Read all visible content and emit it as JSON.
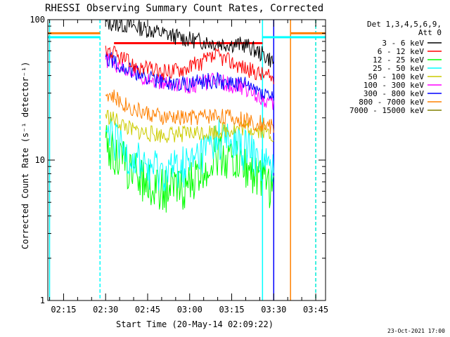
{
  "chart_data": {
    "type": "line",
    "title": "RHESSI Observing Summary Count Rates, Corrected",
    "xlabel": "Start Time (20-May-14 02:09:22)",
    "ylabel": "Corrected Count Rate (s⁻¹ detector⁻¹)",
    "y_scale": "log",
    "ylim": [
      1,
      100
    ],
    "xlim": [
      "02:09:22",
      "03:48:30"
    ],
    "x_ticks": [
      "02:15",
      "02:30",
      "02:45",
      "03:00",
      "03:15",
      "03:30",
      "03:45"
    ],
    "y_ticks": [
      "1",
      "10",
      "100"
    ],
    "legend_header": [
      "Det 1,3,4,5,6,9,",
      "Att 0"
    ],
    "legend_position": "right",
    "grid": false,
    "series": [
      {
        "name": "3 - 6 keV",
        "color": "#000000",
        "x": [
          "02:30",
          "02:40",
          "02:50",
          "03:00",
          "03:10",
          "03:20",
          "03:27",
          "03:30"
        ],
        "values": [
          95,
          90,
          80,
          72,
          68,
          66,
          55,
          50
        ]
      },
      {
        "name": "6 - 12 keV",
        "color": "#ff0000",
        "x": [
          "02:30",
          "02:40",
          "02:50",
          "03:00",
          "03:10",
          "03:20",
          "03:27",
          "03:30"
        ],
        "values": [
          62,
          47,
          42,
          46,
          55,
          45,
          40,
          38
        ]
      },
      {
        "name": "12 - 25 keV",
        "color": "#00ff00",
        "x": [
          "02:30",
          "02:40",
          "02:50",
          "03:00",
          "03:10",
          "03:20",
          "03:27",
          "03:30"
        ],
        "values": [
          13,
          8,
          6,
          6.5,
          11,
          9,
          7,
          6
        ]
      },
      {
        "name": "25 - 50 keV",
        "color": "#00ffff",
        "x": [
          "02:30",
          "02:40",
          "02:50",
          "03:00",
          "03:10",
          "03:20",
          "03:27",
          "03:30"
        ],
        "values": [
          15,
          10,
          8,
          9,
          14,
          12,
          9,
          8
        ]
      },
      {
        "name": "50 - 100 keV",
        "color": "#cccc00",
        "x": [
          "02:30",
          "02:40",
          "02:50",
          "03:00",
          "03:10",
          "03:20",
          "03:27",
          "03:30"
        ],
        "values": [
          21,
          16,
          15,
          15.5,
          16,
          17,
          16,
          15
        ]
      },
      {
        "name": "100 - 300 keV",
        "color": "#ff00ff",
        "x": [
          "02:30",
          "02:40",
          "02:50",
          "03:00",
          "03:10",
          "03:20",
          "03:27",
          "03:30"
        ],
        "values": [
          52,
          42,
          35,
          34,
          37,
          32,
          27,
          24
        ]
      },
      {
        "name": "300 - 800 keV",
        "color": "#0000ff",
        "x": [
          "02:30",
          "02:40",
          "02:50",
          "03:00",
          "03:10",
          "03:20",
          "03:27",
          "03:30"
        ],
        "values": [
          55,
          42,
          36,
          35,
          37,
          34,
          30,
          28
        ]
      },
      {
        "name": "800 - 7000 keV",
        "color": "#ff8000",
        "x": [
          "02:30",
          "02:40",
          "02:50",
          "03:00",
          "03:10",
          "03:20",
          "03:27",
          "03:30"
        ],
        "values": [
          30,
          23,
          20,
          20,
          21,
          19,
          18,
          17
        ]
      },
      {
        "name": "7000 - 15000 keV",
        "color": "#808000",
        "x": [],
        "values": []
      }
    ],
    "overlays": [
      {
        "color": "#00ffff",
        "x": [
          "02:09:22",
          "02:28"
        ],
        "values": [
          75,
          75
        ]
      },
      {
        "color": "#ff8000",
        "x": [
          "02:09:22",
          "02:28"
        ],
        "values": [
          80,
          80
        ]
      },
      {
        "color": "#ff0000",
        "x": [
          "02:33",
          "03:26"
        ],
        "values": [
          68,
          68
        ]
      },
      {
        "color": "#00ffff",
        "x": [
          "03:26",
          "03:48:30"
        ],
        "values": [
          75,
          75
        ]
      },
      {
        "color": "#ff8000",
        "x": [
          "03:36",
          "03:48:30"
        ],
        "values": [
          80,
          80
        ]
      }
    ],
    "vertical_markers": [
      {
        "color": "#00ffff",
        "x": "02:10",
        "style": "solid"
      },
      {
        "color": "#ff8000",
        "x": "02:28",
        "style": "dashed"
      },
      {
        "color": "#00ffff",
        "x": "02:28",
        "style": "dashed"
      },
      {
        "color": "#00ffff",
        "x": "03:26",
        "style": "solid"
      },
      {
        "color": "#0000ff",
        "x": "03:30",
        "style": "solid"
      },
      {
        "color": "#ff8000",
        "x": "03:36",
        "style": "solid"
      },
      {
        "color": "#ff8000",
        "x": "03:45",
        "style": "dashed"
      },
      {
        "color": "#00ffff",
        "x": "03:45",
        "style": "dashed"
      }
    ],
    "timestamp": "23-Oct-2021 17:00"
  }
}
